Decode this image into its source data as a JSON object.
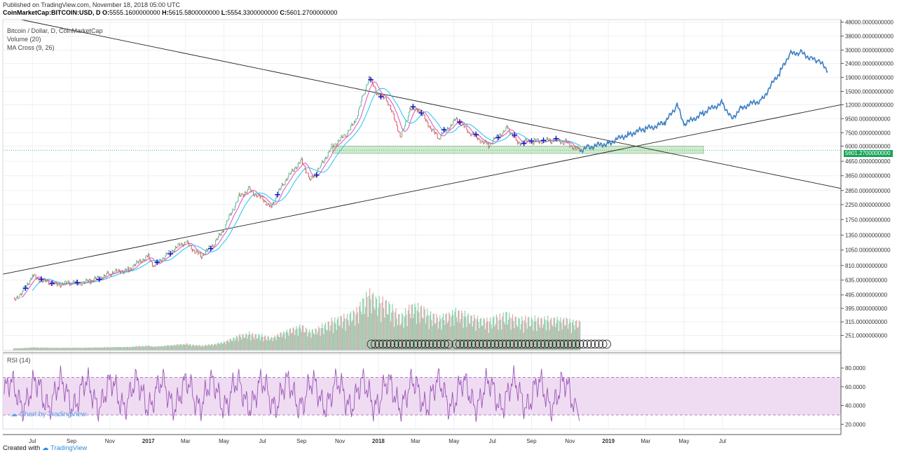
{
  "header": {
    "published": "Published on TradingView.com, November 18, 2018 05:00 UTC",
    "symbol": "CoinMarketCap:BITCOIN:USD, D",
    "open_label": "O:",
    "open": "5555.1600000000",
    "high_label": "H:",
    "high": "5615.5800000000",
    "low_label": "L:",
    "low": "5554.3300000000",
    "close_label": "C:",
    "close": "5601.2700000000"
  },
  "legend": {
    "title": "Bitcoin / Dollar, D, CoinMarketCap",
    "volume": "Volume (20)",
    "ma_cross": "MA Cross (9, 26)"
  },
  "rsi_label": "RSI (14)",
  "watermark": "Chart by TradingView",
  "footer": {
    "created_with": "Created with",
    "brand": "TradingView"
  },
  "last_price": "5601.2700000000",
  "colors": {
    "price_line": "#3b7dc4",
    "candle_up": "#53b987",
    "candle_down": "#eb4d5c",
    "ma_fast": "#e05cc8",
    "ma_slow": "#33c9f0",
    "trendline": "#222222",
    "zone": "#a7d7a5",
    "rsi_line": "#9c56b8",
    "rsi_band": "#efdcf2",
    "cross_marker": "#1414d6",
    "price_tag": "#17a558"
  },
  "chart_data": {
    "type": "line",
    "title": "Bitcoin / Dollar, D, CoinMarketCap",
    "y_scale": "log",
    "y_ticks": [
      "48000.0000000000",
      "38000.0000000000",
      "30000.0000000000",
      "24000.0000000000",
      "19000.0000000000",
      "15000.0000000000",
      "12000.0000000000",
      "9500.0000000000",
      "7500.0000000000",
      "6000.0000000000",
      "4650.0000000000",
      "3650.0000000000",
      "2850.0000000000",
      "2250.0000000000",
      "1750.0000000000",
      "1350.0000000000",
      "1050.0000000000",
      "810.0000000000",
      "635.0000000000",
      "495.0000000000",
      "395.0000000000",
      "315.0000000000",
      "251.0000000000"
    ],
    "x_ticks": [
      "Jul",
      "Sep",
      "Nov",
      "2017",
      "Mar",
      "May",
      "Jul",
      "Sep",
      "Nov",
      "2018",
      "Mar",
      "May",
      "Jul",
      "Sep",
      "Nov",
      "2019",
      "Mar",
      "May",
      "Jul"
    ],
    "price_series": {
      "dates": [
        "2016-06-01",
        "2016-06-15",
        "2016-07-01",
        "2016-08-01",
        "2016-09-01",
        "2016-10-01",
        "2016-11-01",
        "2016-12-01",
        "2017-01-01",
        "2017-01-10",
        "2017-02-01",
        "2017-03-01",
        "2017-03-25",
        "2017-04-15",
        "2017-05-01",
        "2017-05-25",
        "2017-06-10",
        "2017-07-15",
        "2017-08-05",
        "2017-09-01",
        "2017-09-15",
        "2017-10-01",
        "2017-10-20",
        "2017-11-10",
        "2017-11-25",
        "2017-12-10",
        "2017-12-17",
        "2018-01-01",
        "2018-01-15",
        "2018-02-06",
        "2018-02-20",
        "2018-03-05",
        "2018-04-06",
        "2018-05-05",
        "2018-05-25",
        "2018-06-25",
        "2018-07-25",
        "2018-08-10",
        "2018-09-05",
        "2018-10-01",
        "2018-10-25",
        "2018-11-14",
        "2018-11-17"
      ],
      "values": [
        450,
        520,
        680,
        590,
        600,
        620,
        710,
        760,
        960,
        800,
        1000,
        1200,
        950,
        1150,
        1500,
        2600,
        2900,
        2200,
        3300,
        4800,
        3400,
        4300,
        6000,
        7200,
        9000,
        15000,
        19000,
        14000,
        13000,
        7000,
        11000,
        11200,
        6800,
        9500,
        7500,
        6100,
        8200,
        6400,
        6500,
        6600,
        6450,
        5600,
        5601
      ]
    },
    "projection_series": {
      "dates": [
        "2018-11-17",
        "2018-12-01",
        "2019-01-01",
        "2019-02-01",
        "2019-03-01",
        "2019-04-01",
        "2019-04-20",
        "2019-05-01",
        "2019-06-01",
        "2019-07-01",
        "2019-07-15",
        "2019-08-01",
        "2019-09-01",
        "2019-10-01",
        "2019-10-15",
        "2019-11-01",
        "2019-11-20",
        "2019-12-01",
        "2019-12-15"
      ],
      "values": [
        5600,
        5900,
        6300,
        7300,
        8000,
        8800,
        12000,
        8600,
        10500,
        12500,
        9500,
        11500,
        13000,
        21000,
        28000,
        29000,
        26000,
        25000,
        21000
      ]
    },
    "zone": {
      "from": "2017-10-20",
      "to": "2019-06-01",
      "y_low": 5300,
      "y_high": 6000
    },
    "rsi": {
      "ylim": [
        15,
        95
      ],
      "upper_band": 70,
      "lower_band": 30,
      "y_ticks": [
        "80.0000",
        "60.0000",
        "40.0000",
        "20.0000"
      ]
    }
  }
}
